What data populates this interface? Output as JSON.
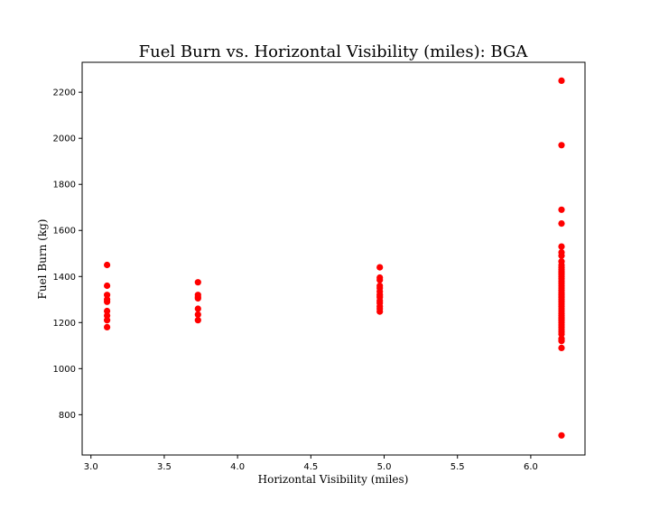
{
  "chart_data": {
    "type": "scatter",
    "title": "Fuel Burn vs. Horizontal Visibility (miles): BGA",
    "xlabel": "Horizontal Visibility (miles)",
    "ylabel": "Fuel Burn (kg)",
    "xlim": [
      2.94,
      6.37
    ],
    "ylim": [
      625,
      2330
    ],
    "xticks": [
      3.0,
      3.5,
      4.0,
      4.5,
      5.0,
      5.5,
      6.0
    ],
    "xtick_labels": [
      "3.0",
      "3.5",
      "4.0",
      "4.5",
      "5.0",
      "5.5",
      "6.0"
    ],
    "yticks": [
      800,
      1000,
      1200,
      1400,
      1600,
      1800,
      2000,
      2200
    ],
    "ytick_labels": [
      "800",
      "1000",
      "1200",
      "1400",
      "1600",
      "1800",
      "2000",
      "2200"
    ],
    "grid": false,
    "marker_color": "#ff0000",
    "points": [
      [
        3.11,
        1450
      ],
      [
        3.11,
        1360
      ],
      [
        3.11,
        1320
      ],
      [
        3.11,
        1300
      ],
      [
        3.11,
        1290
      ],
      [
        3.11,
        1250
      ],
      [
        3.11,
        1230
      ],
      [
        3.11,
        1210
      ],
      [
        3.11,
        1180
      ],
      [
        3.73,
        1375
      ],
      [
        3.73,
        1320
      ],
      [
        3.73,
        1310
      ],
      [
        3.73,
        1305
      ],
      [
        3.73,
        1260
      ],
      [
        3.73,
        1235
      ],
      [
        3.73,
        1210
      ],
      [
        4.97,
        1440
      ],
      [
        4.97,
        1395
      ],
      [
        4.97,
        1385
      ],
      [
        4.97,
        1360
      ],
      [
        4.97,
        1350
      ],
      [
        4.97,
        1335
      ],
      [
        4.97,
        1320
      ],
      [
        4.97,
        1310
      ],
      [
        4.97,
        1295
      ],
      [
        4.97,
        1285
      ],
      [
        4.97,
        1270
      ],
      [
        4.97,
        1260
      ],
      [
        4.97,
        1248
      ],
      [
        6.21,
        2250
      ],
      [
        6.21,
        1970
      ],
      [
        6.21,
        1690
      ],
      [
        6.21,
        1630
      ],
      [
        6.21,
        1530
      ],
      [
        6.21,
        1505
      ],
      [
        6.21,
        1490
      ],
      [
        6.21,
        1465
      ],
      [
        6.21,
        1450
      ],
      [
        6.21,
        1440
      ],
      [
        6.21,
        1430
      ],
      [
        6.21,
        1420
      ],
      [
        6.21,
        1410
      ],
      [
        6.21,
        1400
      ],
      [
        6.21,
        1390
      ],
      [
        6.21,
        1380
      ],
      [
        6.21,
        1370
      ],
      [
        6.21,
        1360
      ],
      [
        6.21,
        1350
      ],
      [
        6.21,
        1340
      ],
      [
        6.21,
        1330
      ],
      [
        6.21,
        1320
      ],
      [
        6.21,
        1310
      ],
      [
        6.21,
        1300
      ],
      [
        6.21,
        1290
      ],
      [
        6.21,
        1280
      ],
      [
        6.21,
        1270
      ],
      [
        6.21,
        1260
      ],
      [
        6.21,
        1250
      ],
      [
        6.21,
        1240
      ],
      [
        6.21,
        1230
      ],
      [
        6.21,
        1220
      ],
      [
        6.21,
        1210
      ],
      [
        6.21,
        1200
      ],
      [
        6.21,
        1190
      ],
      [
        6.21,
        1180
      ],
      [
        6.21,
        1170
      ],
      [
        6.21,
        1160
      ],
      [
        6.21,
        1150
      ],
      [
        6.21,
        1130
      ],
      [
        6.21,
        1120
      ],
      [
        6.21,
        1090
      ],
      [
        6.21,
        710
      ]
    ]
  }
}
